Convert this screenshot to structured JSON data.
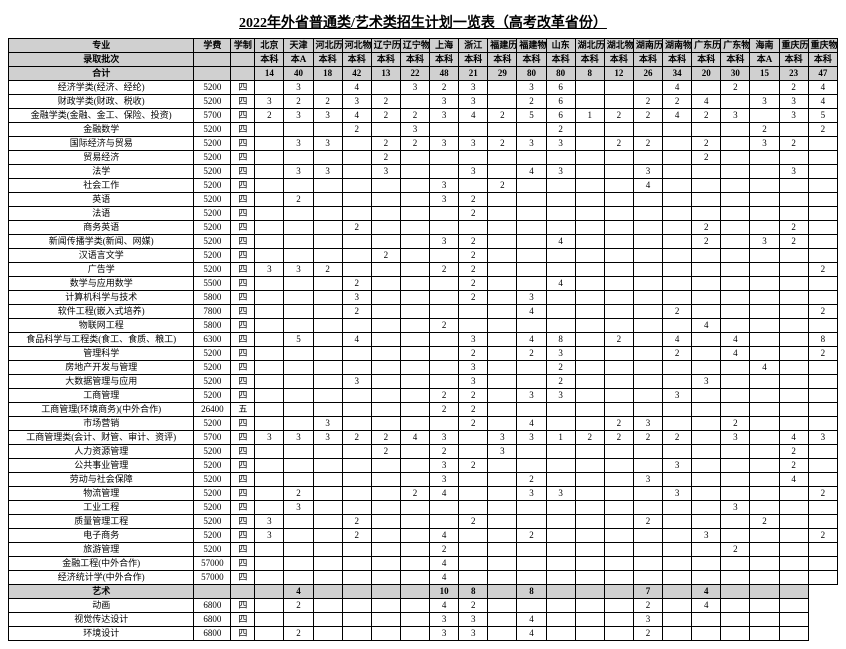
{
  "title": "2022年外省普通类/艺术类招生计划一览表（高考改革省份）",
  "header1": [
    "专业",
    "学费",
    "学制",
    "北京",
    "天津",
    "河北历史",
    "河北物理",
    "辽宁历史",
    "辽宁物理",
    "上海",
    "浙江",
    "福建历史",
    "福建物理",
    "山东",
    "湖北历史",
    "湖北物理",
    "湖南历史",
    "湖南物理",
    "广东历史",
    "广东物理",
    "海南",
    "重庆历史",
    "重庆物理"
  ],
  "header2": [
    "录取批次",
    "",
    "",
    "本科",
    "本A",
    "本科",
    "本科",
    "本科",
    "本科",
    "本科",
    "本科",
    "本科",
    "本科",
    "本科",
    "本科",
    "本科",
    "本科",
    "本科",
    "本科",
    "本科",
    "本A",
    "本科",
    "本科"
  ],
  "header3": [
    "合计",
    "",
    "",
    "14",
    "40",
    "18",
    "42",
    "13",
    "22",
    "48",
    "21",
    "29",
    "80",
    "80",
    "8",
    "12",
    "26",
    "34",
    "20",
    "30",
    "15",
    "23",
    "47"
  ],
  "rows": [
    [
      "经济学类(经济、经纶)",
      "5200",
      "四",
      "",
      "3",
      "",
      "4",
      "",
      "3",
      "2",
      "3",
      "",
      "3",
      "6",
      "",
      "",
      "",
      "4",
      "",
      "2",
      "",
      "2",
      "4"
    ],
    [
      "财政学类(财政、税收)",
      "5200",
      "四",
      "3",
      "2",
      "2",
      "3",
      "2",
      "",
      "3",
      "3",
      "",
      "2",
      "6",
      "",
      "",
      "2",
      "2",
      "4",
      "",
      "3",
      "3",
      "4"
    ],
    [
      "金融学类(金融、金工、保险、投资)",
      "5700",
      "四",
      "2",
      "3",
      "3",
      "4",
      "2",
      "2",
      "3",
      "4",
      "2",
      "5",
      "6",
      "1",
      "2",
      "2",
      "4",
      "2",
      "3",
      "",
      "3",
      "5"
    ],
    [
      "金融数学",
      "5200",
      "四",
      "",
      "",
      "",
      "2",
      "",
      "3",
      "",
      "",
      "",
      "",
      "2",
      "",
      "",
      "",
      "",
      "",
      "",
      "2",
      "",
      "2"
    ],
    [
      "国际经济与贸易",
      "5200",
      "四",
      "",
      "3",
      "3",
      "",
      "2",
      "2",
      "3",
      "3",
      "2",
      "3",
      "3",
      "",
      "2",
      "2",
      "",
      "2",
      "",
      "3",
      "2",
      ""
    ],
    [
      "贸易经济",
      "5200",
      "四",
      "",
      "",
      "",
      "",
      "2",
      "",
      "",
      "",
      "",
      "",
      "",
      "",
      "",
      "",
      "",
      "2",
      "",
      "",
      "",
      ""
    ],
    [
      "法学",
      "5200",
      "四",
      "",
      "3",
      "3",
      "",
      "3",
      "",
      "",
      "3",
      "",
      "4",
      "3",
      "",
      "",
      "3",
      "",
      "",
      "",
      "",
      "3",
      ""
    ],
    [
      "社会工作",
      "5200",
      "四",
      "",
      "",
      "",
      "",
      "",
      "",
      "3",
      "",
      "2",
      "",
      "",
      "",
      "",
      "4",
      "",
      "",
      "",
      "",
      "",
      ""
    ],
    [
      "英语",
      "5200",
      "四",
      "",
      "2",
      "",
      "",
      "",
      "",
      "3",
      "2",
      "",
      "",
      "",
      "",
      "",
      "",
      "",
      "",
      "",
      "",
      "",
      ""
    ],
    [
      "法语",
      "5200",
      "四",
      "",
      "",
      "",
      "",
      "",
      "",
      "",
      "2",
      "",
      "",
      "",
      "",
      "",
      "",
      "",
      "",
      "",
      "",
      "",
      ""
    ],
    [
      "商务英语",
      "5200",
      "四",
      "",
      "",
      "",
      "2",
      "",
      "",
      "",
      "",
      "",
      "",
      "",
      "",
      "",
      "",
      "",
      "2",
      "",
      "",
      "2",
      ""
    ],
    [
      "新闻传播学类(新闻、网媒)",
      "5200",
      "四",
      "",
      "",
      "",
      "",
      "",
      "",
      "3",
      "2",
      "",
      "",
      "4",
      "",
      "",
      "",
      "",
      "2",
      "",
      "3",
      "2",
      ""
    ],
    [
      "汉语言文学",
      "5200",
      "四",
      "",
      "",
      "",
      "",
      "2",
      "",
      "",
      "2",
      "",
      "",
      "",
      "",
      "",
      "",
      "",
      "",
      "",
      "",
      "",
      ""
    ],
    [
      "广告学",
      "5200",
      "四",
      "3",
      "3",
      "2",
      "",
      "",
      "",
      "2",
      "2",
      "",
      "",
      "",
      "",
      "",
      "",
      "",
      "",
      "",
      "",
      "",
      "2"
    ],
    [
      "数学与应用数学",
      "5500",
      "四",
      "",
      "",
      "",
      "2",
      "",
      "",
      "",
      "2",
      "",
      "",
      "4",
      "",
      "",
      "",
      "",
      "",
      "",
      "",
      "",
      ""
    ],
    [
      "计算机科学与技术",
      "5800",
      "四",
      "",
      "",
      "",
      "3",
      "",
      "",
      "",
      "2",
      "",
      "3",
      "",
      "",
      "",
      "",
      "",
      "",
      "",
      "",
      "",
      ""
    ],
    [
      "软件工程(嵌入式培养)",
      "7800",
      "四",
      "",
      "",
      "",
      "2",
      "",
      "",
      "",
      "",
      "",
      "4",
      "",
      "",
      "",
      "",
      "2",
      "",
      "",
      "",
      "",
      "2"
    ],
    [
      "物联网工程",
      "5800",
      "四",
      "",
      "",
      "",
      "",
      "",
      "",
      "2",
      "",
      "",
      "",
      "",
      "",
      "",
      "",
      "",
      "4",
      "",
      "",
      "",
      ""
    ],
    [
      "食品科学与工程类(食工、食质、粮工)",
      "6300",
      "四",
      "",
      "5",
      "",
      "4",
      "",
      "",
      "",
      "3",
      "",
      "4",
      "8",
      "",
      "2",
      "",
      "4",
      "",
      "4",
      "",
      "",
      "8"
    ],
    [
      "管理科学",
      "5200",
      "四",
      "",
      "",
      "",
      "",
      "",
      "",
      "",
      "2",
      "",
      "2",
      "3",
      "",
      "",
      "",
      "2",
      "",
      "4",
      "",
      "",
      "2"
    ],
    [
      "房地产开发与管理",
      "5200",
      "四",
      "",
      "",
      "",
      "",
      "",
      "",
      "",
      "3",
      "",
      "",
      "2",
      "",
      "",
      "",
      "",
      "",
      "",
      "4",
      "",
      ""
    ],
    [
      "大数据管理与应用",
      "5200",
      "四",
      "",
      "",
      "",
      "3",
      "",
      "",
      "",
      "3",
      "",
      "",
      "2",
      "",
      "",
      "",
      "",
      "3",
      "",
      "",
      "",
      ""
    ],
    [
      "工商管理",
      "5200",
      "四",
      "",
      "",
      "",
      "",
      "",
      "",
      "2",
      "2",
      "",
      "3",
      "3",
      "",
      "",
      "",
      "3",
      "",
      "",
      "",
      "",
      ""
    ],
    [
      "工商管理(环境商务)(中外合作)",
      "26400",
      "五",
      "",
      "",
      "",
      "",
      "",
      "",
      "2",
      "2",
      "",
      "",
      "",
      "",
      "",
      "",
      "",
      "",
      "",
      "",
      "",
      ""
    ],
    [
      "市场营销",
      "5200",
      "四",
      "",
      "",
      "3",
      "",
      "",
      "",
      "",
      "2",
      "",
      "4",
      "",
      "",
      "2",
      "3",
      "",
      "",
      "2",
      "",
      "",
      ""
    ],
    [
      "工商管理类(会计、财管、审计、资评)",
      "5700",
      "四",
      "3",
      "3",
      "3",
      "2",
      "2",
      "4",
      "3",
      "",
      "3",
      "3",
      "1",
      "2",
      "2",
      "2",
      "2",
      "",
      "3",
      "",
      "4",
      "3"
    ],
    [
      "人力资源管理",
      "5200",
      "四",
      "",
      "",
      "",
      "",
      "2",
      "",
      "2",
      "",
      "3",
      "",
      "",
      "",
      "",
      "",
      "",
      "",
      "",
      "",
      "2",
      ""
    ],
    [
      "公共事业管理",
      "5200",
      "四",
      "",
      "",
      "",
      "",
      "",
      "",
      "3",
      "2",
      "",
      "",
      "",
      "",
      "",
      "",
      "3",
      "",
      "",
      "",
      "2",
      ""
    ],
    [
      "劳动与社会保障",
      "5200",
      "四",
      "",
      "",
      "",
      "",
      "",
      "",
      "3",
      "",
      "",
      "2",
      "",
      "",
      "",
      "3",
      "",
      "",
      "",
      "",
      "4",
      ""
    ],
    [
      "物流管理",
      "5200",
      "四",
      "",
      "2",
      "",
      "",
      "",
      "2",
      "4",
      "",
      "",
      "3",
      "3",
      "",
      "",
      "",
      "3",
      "",
      "",
      "",
      "",
      "2"
    ],
    [
      "工业工程",
      "5200",
      "四",
      "",
      "3",
      "",
      "",
      "",
      "",
      "",
      "",
      "",
      "",
      "",
      "",
      "",
      "",
      "",
      "",
      "3",
      "",
      "",
      ""
    ],
    [
      "质量管理工程",
      "5200",
      "四",
      "3",
      "",
      "",
      "2",
      "",
      "",
      "",
      "2",
      "",
      "",
      "",
      "",
      "",
      "2",
      "",
      "",
      "",
      "2",
      "",
      ""
    ],
    [
      "电子商务",
      "5200",
      "四",
      "3",
      "",
      "",
      "2",
      "",
      "",
      "4",
      "",
      "",
      "2",
      "",
      "",
      "",
      "",
      "",
      "3",
      "",
      "",
      "",
      "2"
    ],
    [
      "旅游管理",
      "5200",
      "四",
      "",
      "",
      "",
      "",
      "",
      "",
      "2",
      "",
      "",
      "",
      "",
      "",
      "",
      "",
      "",
      "",
      "2",
      "",
      "",
      ""
    ],
    [
      "金融工程(中外合作)",
      "57000",
      "四",
      "",
      "",
      "",
      "",
      "",
      "",
      "4",
      "",
      "",
      "",
      "",
      "",
      "",
      "",
      "",
      "",
      "",
      "",
      "",
      ""
    ],
    [
      "经济统计学(中外合作)",
      "57000",
      "四",
      "",
      "",
      "",
      "",
      "",
      "",
      "4",
      "",
      "",
      "",
      "",
      "",
      "",
      "",
      "",
      "",
      "",
      "",
      "",
      ""
    ]
  ],
  "artHeader": [
    "艺术",
    "",
    "",
    "",
    "4",
    "",
    "",
    "",
    "",
    "10",
    "8",
    "",
    "8",
    "",
    "",
    "",
    "7",
    "",
    "4",
    "",
    "",
    ""
  ],
  "artRows": [
    [
      "动画",
      "6800",
      "四",
      "",
      "2",
      "",
      "",
      "",
      "",
      "4",
      "2",
      "",
      "",
      "",
      "",
      "",
      "2",
      "",
      "4",
      "",
      "",
      ""
    ],
    [
      "视觉传达设计",
      "6800",
      "四",
      "",
      "",
      "",
      "",
      "",
      "",
      "3",
      "3",
      "",
      "4",
      "",
      "",
      "",
      "3",
      "",
      "",
      "",
      "",
      ""
    ],
    [
      "环境设计",
      "6800",
      "四",
      "",
      "2",
      "",
      "",
      "",
      "",
      "3",
      "3",
      "",
      "4",
      "",
      "",
      "",
      "2",
      "",
      "",
      "",
      "",
      ""
    ]
  ]
}
